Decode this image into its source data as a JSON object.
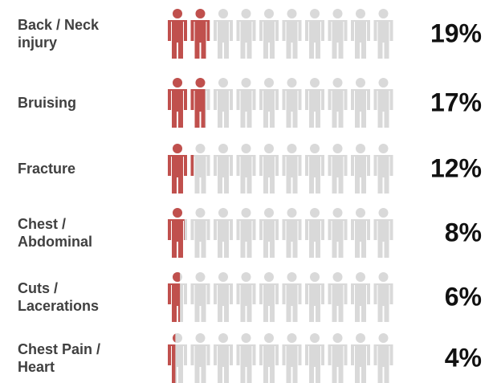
{
  "chart_data": {
    "type": "pictogram",
    "categories": [
      "Back / Neck injury",
      "Bruising",
      "Fracture",
      "Chest / Abdominal",
      "Cuts / Lacerations",
      "Chest Pain / Heart"
    ],
    "values": [
      19,
      17,
      12,
      8,
      6,
      4
    ],
    "value_labels": [
      "19%",
      "17%",
      "12%",
      "8%",
      "6%",
      "4%"
    ],
    "color": "#c0504d",
    "base_color": "#d9d9d9"
  }
}
